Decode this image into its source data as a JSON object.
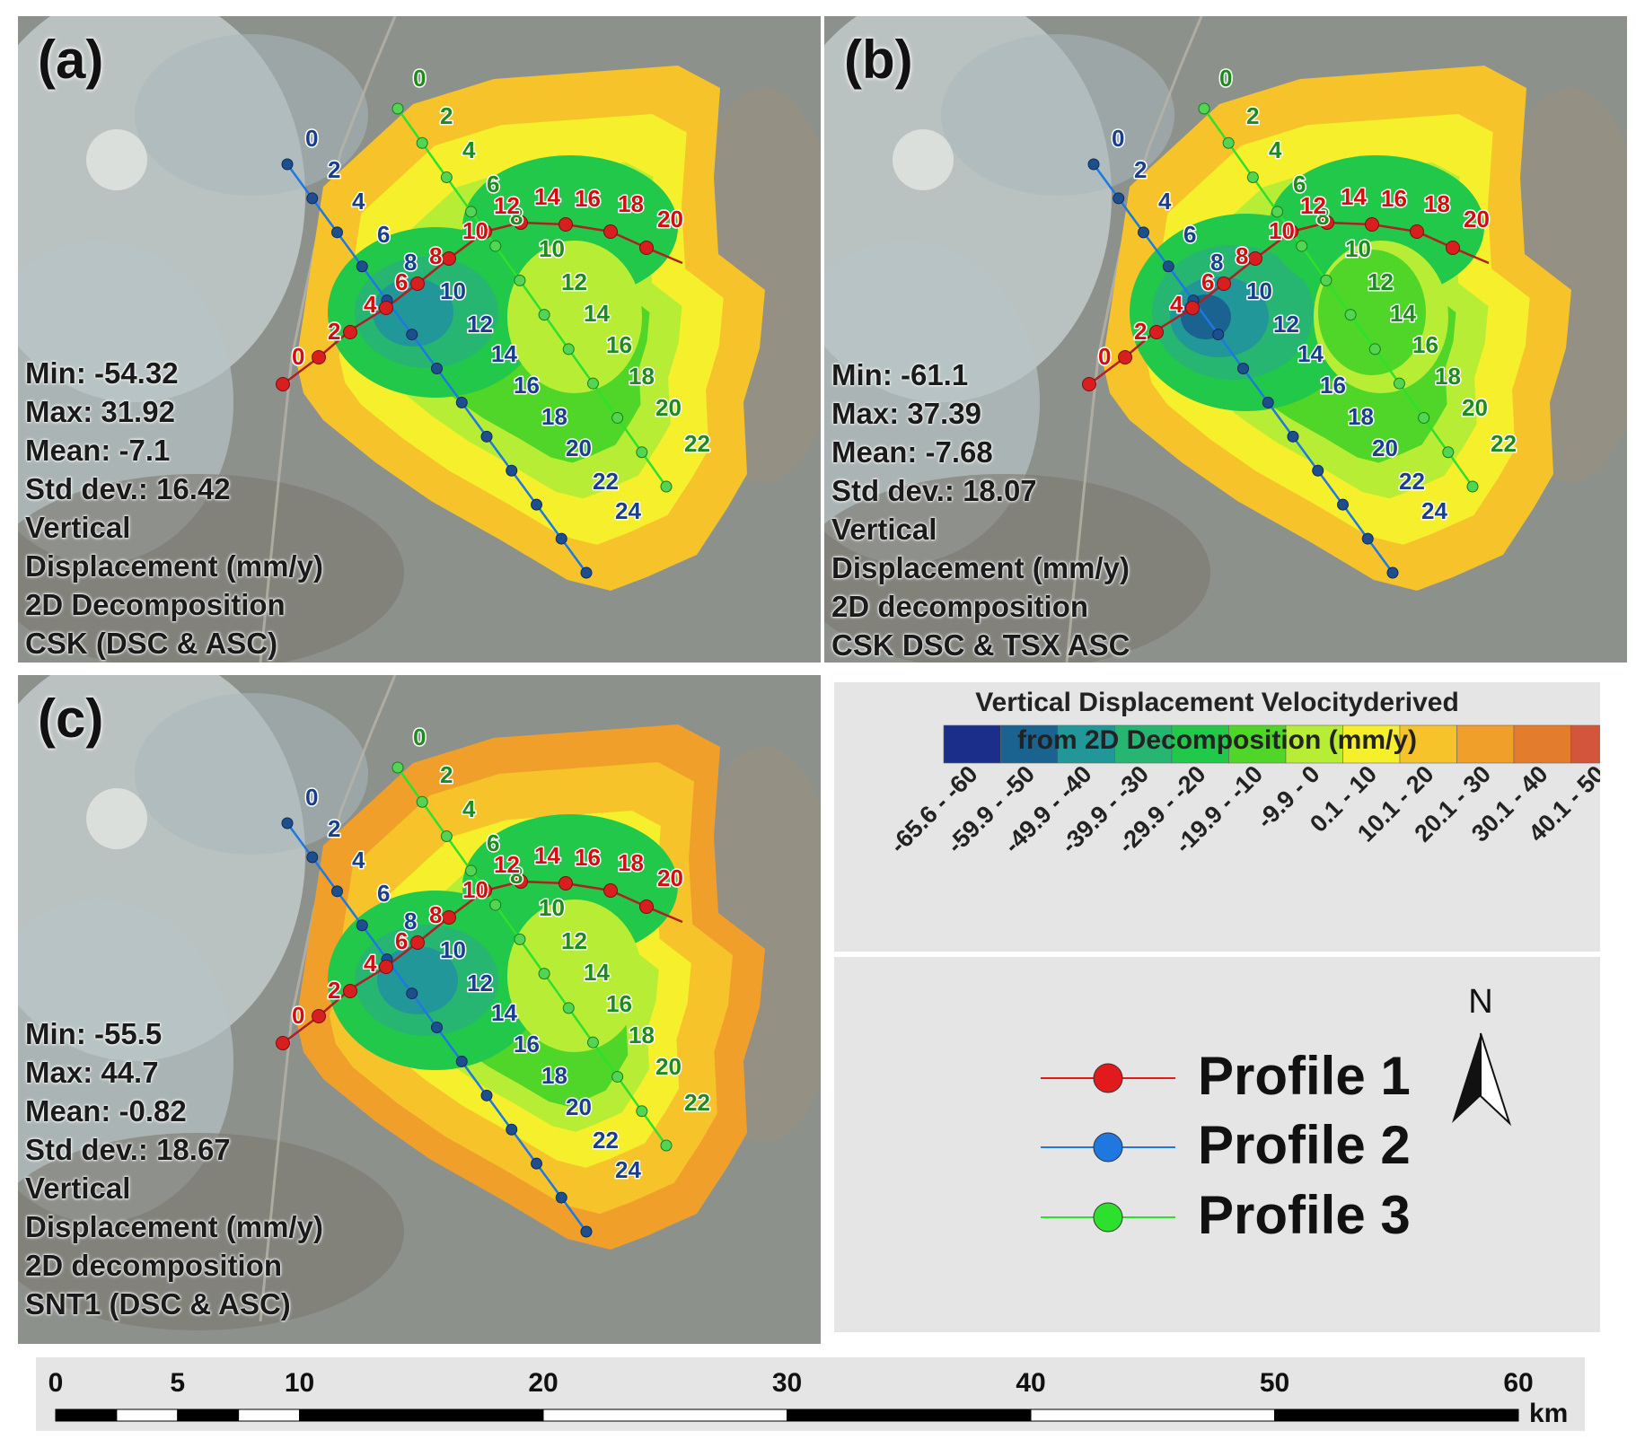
{
  "panels": [
    {
      "letter": "(a)",
      "stats": [
        "Min: -54.32",
        "Max: 31.92",
        "Mean: -7.1",
        "Std dev.: 16.42",
        "Vertical",
        "Displacement (mm/y)",
        "2D Decomposition",
        "CSK (DSC & ASC)"
      ]
    },
    {
      "letter": "(b)",
      "stats": [
        "Min: -61.1",
        "Max: 37.39",
        "Mean: -7.68",
        "Std dev.: 18.07",
        "Vertical",
        "Displacement (mm/y)",
        "2D decomposition",
        "CSK DSC & TSX ASC"
      ]
    },
    {
      "letter": "(c)",
      "stats": [
        "Min: -55.5",
        "Max: 44.7",
        "Mean: -0.82",
        "Std dev.: 18.67",
        "Vertical",
        "Displacement (mm/y)",
        "2D decomposition",
        "SNT1 (DSC & ASC)"
      ]
    }
  ],
  "profile_ticks": {
    "profile1": [
      "0",
      "2",
      "4",
      "6",
      "8",
      "10",
      "12",
      "14",
      "16",
      "18",
      "20"
    ],
    "profile2": [
      "0",
      "2",
      "4",
      "6",
      "8",
      "10",
      "12",
      "14",
      "16",
      "18",
      "20",
      "22",
      "24"
    ],
    "profile3": [
      "0",
      "2",
      "4",
      "6",
      "8",
      "10",
      "12",
      "14",
      "16",
      "18",
      "20",
      "22"
    ]
  },
  "colorbar": {
    "title_line1": "Vertical Displacement Velocityderived",
    "title_line2": "from 2D Decomposition  (mm/y)",
    "classes": [
      {
        "label": "-65.6 - -60",
        "color": "#1b2f8a"
      },
      {
        "label": "-59.9 - -50",
        "color": "#1a628f"
      },
      {
        "label": "-49.9 - -40",
        "color": "#21979a"
      },
      {
        "label": "-39.9 - -30",
        "color": "#27b572"
      },
      {
        "label": "-29.9 - -20",
        "color": "#21c84a"
      },
      {
        "label": "-19.9 - -10",
        "color": "#4fd628"
      },
      {
        "label": "-9.9 - 0",
        "color": "#b7ee35"
      },
      {
        "label": "0.1 - 10",
        "color": "#f6f02c"
      },
      {
        "label": "10.1 - 20",
        "color": "#f6c42a"
      },
      {
        "label": "20.1 - 30",
        "color": "#f0a02a"
      },
      {
        "label": "30.1 - 40",
        "color": "#e37c2c"
      },
      {
        "label": "40.1 - 50",
        "color": "#d2553c"
      }
    ]
  },
  "legend": {
    "profiles": [
      {
        "label": "Profile 1",
        "color": "#e31a1c"
      },
      {
        "label": "Profile 2",
        "color": "#1f78e0"
      },
      {
        "label": "Profile 3",
        "color": "#2ee02e"
      }
    ],
    "north_label": "N"
  },
  "scale_bar": {
    "labels": [
      "0",
      "5",
      "10",
      "20",
      "30",
      "40",
      "50",
      "60"
    ],
    "unit": "km"
  }
}
